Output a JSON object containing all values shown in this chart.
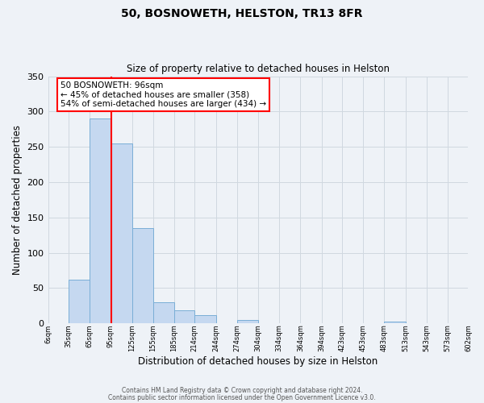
{
  "title": "50, BOSNOWETH, HELSTON, TR13 8FR",
  "subtitle": "Size of property relative to detached houses in Helston",
  "xlabel": "Distribution of detached houses by size in Helston",
  "ylabel": "Number of detached properties",
  "bar_edges": [
    6,
    35,
    65,
    95,
    125,
    155,
    185,
    214,
    244,
    274,
    304,
    334,
    364,
    394,
    423,
    453,
    483,
    513,
    543,
    573,
    602
  ],
  "bar_heights": [
    0,
    62,
    290,
    255,
    135,
    30,
    18,
    12,
    0,
    5,
    0,
    0,
    0,
    0,
    0,
    0,
    3,
    0,
    0,
    0,
    0
  ],
  "bar_color": "#c5d8f0",
  "bar_edge_color": "#7aaed6",
  "grid_color": "#d0d8e0",
  "background_color": "#eef2f7",
  "red_line_x": 96,
  "ylim": [
    0,
    350
  ],
  "yticks": [
    0,
    50,
    100,
    150,
    200,
    250,
    300,
    350
  ],
  "annotation_text": "50 BOSNOWETH: 96sqm\n← 45% of detached houses are smaller (358)\n54% of semi-detached houses are larger (434) →",
  "annotation_box_color": "white",
  "annotation_box_edge_color": "red",
  "footer_line1": "Contains HM Land Registry data © Crown copyright and database right 2024.",
  "footer_line2": "Contains public sector information licensed under the Open Government Licence v3.0.",
  "tick_labels": [
    "6sqm",
    "35sqm",
    "65sqm",
    "95sqm",
    "125sqm",
    "155sqm",
    "185sqm",
    "214sqm",
    "244sqm",
    "274sqm",
    "304sqm",
    "334sqm",
    "364sqm",
    "394sqm",
    "423sqm",
    "453sqm",
    "483sqm",
    "513sqm",
    "543sqm",
    "573sqm",
    "602sqm"
  ]
}
